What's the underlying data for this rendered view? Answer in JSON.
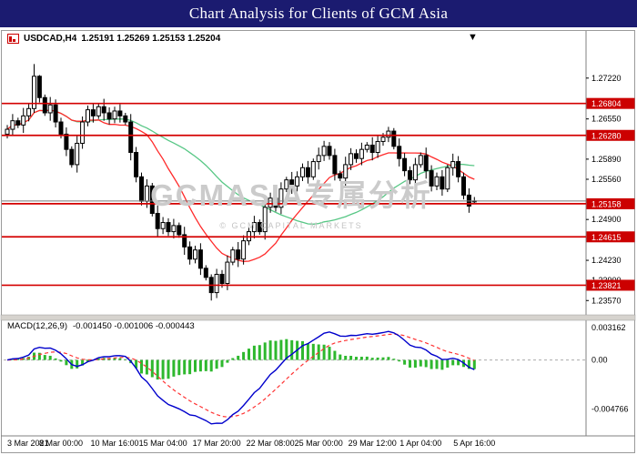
{
  "title_bar": {
    "title": "Chart Analysis for Clients of GCM Asia"
  },
  "chart_header": {
    "symbol": "USDCAD,H4",
    "ohlc": "1.25191 1.25269 1.25153 1.25204"
  },
  "icons": {
    "chevron_down": "▼"
  },
  "watermark": {
    "line1": "GCMASIA专属分析",
    "line2": "© GCM CAPITAL MARKETS"
  },
  "colors": {
    "titlebar_bg": "#1b1b70",
    "title_text": "#ffffff",
    "line_red": "#d40000",
    "badge_bg": "#cc0000",
    "badge_text": "#ffffff",
    "ma_fast": "#ff2a2a",
    "ma_slow": "#57c785",
    "macd_main": "#0000cc",
    "macd_signal": "#ff3333",
    "macd_hist": "#2eb82e",
    "bull": "#ffffff",
    "bear": "#000000",
    "axis_text": "#000000"
  },
  "chart_data": {
    "type": "candlestick",
    "symbol": "USDCAD",
    "timeframe": "H4",
    "ylim": [
      1.2335,
      1.2768
    ],
    "y_axis_ticks": [
      "1.27220",
      "1.26550",
      "1.25890",
      "1.25560",
      "1.24900",
      "1.24230",
      "1.23900",
      "1.23570"
    ],
    "price_lines": [
      "1.26804",
      "1.26280",
      "1.25158",
      "1.24615",
      "1.23821"
    ],
    "bid_price": 1.25204,
    "candles": [
      [
        1.263,
        1.2645,
        1.2623,
        1.2638
      ],
      [
        1.2638,
        1.2663,
        1.2627,
        1.2652
      ],
      [
        1.2652,
        1.2657,
        1.264,
        1.2645
      ],
      [
        1.2645,
        1.2673,
        1.2632,
        1.266
      ],
      [
        1.266,
        1.2681,
        1.2651,
        1.2672
      ],
      [
        1.2672,
        1.2745,
        1.2665,
        1.2725
      ],
      [
        1.2725,
        1.2727,
        1.2682,
        1.269
      ],
      [
        1.269,
        1.2695,
        1.266,
        1.2665
      ],
      [
        1.2665,
        1.2691,
        1.2652,
        1.2678
      ],
      [
        1.2678,
        1.2687,
        1.2641,
        1.265
      ],
      [
        1.265,
        1.2657,
        1.2623,
        1.263
      ],
      [
        1.263,
        1.2641,
        1.2594,
        1.2605
      ],
      [
        1.2605,
        1.261,
        1.2575,
        1.258
      ],
      [
        1.258,
        1.2628,
        1.2567,
        1.2615
      ],
      [
        1.2615,
        1.2659,
        1.2606,
        1.265
      ],
      [
        1.265,
        1.2677,
        1.2643,
        1.267
      ],
      [
        1.267,
        1.2681,
        1.2649,
        1.266
      ],
      [
        1.266,
        1.268,
        1.2655,
        1.2675
      ],
      [
        1.2675,
        1.2688,
        1.2652,
        1.2665
      ],
      [
        1.2665,
        1.2674,
        1.2646,
        1.2655
      ],
      [
        1.2655,
        1.2675,
        1.2648,
        1.2668
      ],
      [
        1.2668,
        1.2679,
        1.2649,
        1.266
      ],
      [
        1.266,
        1.2665,
        1.2645,
        1.265
      ],
      [
        1.265,
        1.2663,
        1.2587,
        1.26
      ],
      [
        1.26,
        1.2609,
        1.2551,
        1.256
      ],
      [
        1.256,
        1.2567,
        1.2513,
        1.252
      ],
      [
        1.252,
        1.2556,
        1.2509,
        1.2545
      ],
      [
        1.2545,
        1.255,
        1.2495,
        1.25
      ],
      [
        1.25,
        1.2513,
        1.2462,
        1.2475
      ],
      [
        1.2475,
        1.2494,
        1.2466,
        1.2485
      ],
      [
        1.2485,
        1.2492,
        1.2463,
        1.247
      ],
      [
        1.247,
        1.2491,
        1.2459,
        1.248
      ],
      [
        1.248,
        1.2485,
        1.246,
        1.2465
      ],
      [
        1.2465,
        1.2478,
        1.2432,
        1.2445
      ],
      [
        1.2445,
        1.2454,
        1.2416,
        1.2425
      ],
      [
        1.2425,
        1.2447,
        1.2418,
        1.244
      ],
      [
        1.244,
        1.2451,
        1.2399,
        1.241
      ],
      [
        1.241,
        1.2415,
        1.239,
        1.2395
      ],
      [
        1.2395,
        1.24,
        1.2357,
        1.237
      ],
      [
        1.237,
        1.2409,
        1.2361,
        1.24
      ],
      [
        1.24,
        1.2407,
        1.2378,
        1.2385
      ],
      [
        1.2385,
        1.2431,
        1.2374,
        1.242
      ],
      [
        1.242,
        1.2445,
        1.2415,
        1.244
      ],
      [
        1.244,
        1.2453,
        1.2412,
        1.2425
      ],
      [
        1.2425,
        1.2464,
        1.2416,
        1.2455
      ],
      [
        1.2455,
        1.2477,
        1.2448,
        1.247
      ],
      [
        1.247,
        1.2496,
        1.2459,
        1.2485
      ],
      [
        1.2485,
        1.249,
        1.2465,
        1.247
      ],
      [
        1.247,
        1.2523,
        1.2457,
        1.251
      ],
      [
        1.251,
        1.2534,
        1.2501,
        1.2525
      ],
      [
        1.2525,
        1.2532,
        1.2503,
        1.251
      ],
      [
        1.251,
        1.2551,
        1.2499,
        1.254
      ],
      [
        1.254,
        1.256,
        1.2535,
        1.2555
      ],
      [
        1.2555,
        1.2568,
        1.2532,
        1.2545
      ],
      [
        1.2545,
        1.2569,
        1.2536,
        1.256
      ],
      [
        1.256,
        1.2582,
        1.2553,
        1.2575
      ],
      [
        1.2575,
        1.2586,
        1.2549,
        1.256
      ],
      [
        1.256,
        1.259,
        1.2555,
        1.2585
      ],
      [
        1.2585,
        1.2608,
        1.2572,
        1.2595
      ],
      [
        1.2595,
        1.2619,
        1.2586,
        1.261
      ],
      [
        1.261,
        1.2617,
        1.2588,
        1.2595
      ],
      [
        1.2595,
        1.2606,
        1.2554,
        1.2565
      ],
      [
        1.2565,
        1.257,
        1.2553,
        1.2558
      ],
      [
        1.2558,
        1.2593,
        1.2545,
        1.258
      ],
      [
        1.258,
        1.2607,
        1.2571,
        1.2598
      ],
      [
        1.2598,
        1.2605,
        1.2583,
        1.259
      ],
      [
        1.259,
        1.2616,
        1.2579,
        1.2605
      ],
      [
        1.2605,
        1.2617,
        1.26,
        1.2612
      ],
      [
        1.2612,
        1.2625,
        1.2587,
        1.26
      ],
      [
        1.26,
        1.2627,
        1.2591,
        1.2618
      ],
      [
        1.2618,
        1.2632,
        1.2611,
        1.2625
      ],
      [
        1.2625,
        1.2642,
        1.2617,
        1.2635
      ],
      [
        1.2635,
        1.264,
        1.2605,
        1.261
      ],
      [
        1.261,
        1.2623,
        1.2577,
        1.259
      ],
      [
        1.259,
        1.2599,
        1.2561,
        1.257
      ],
      [
        1.257,
        1.2577,
        1.2548,
        1.2555
      ],
      [
        1.2555,
        1.2591,
        1.2544,
        1.258
      ],
      [
        1.258,
        1.26,
        1.2575,
        1.2595
      ],
      [
        1.2595,
        1.2608,
        1.2557,
        1.257
      ],
      [
        1.257,
        1.2579,
        1.2536,
        1.2545
      ],
      [
        1.2545,
        1.2567,
        1.2538,
        1.256
      ],
      [
        1.256,
        1.2571,
        1.2529,
        1.254
      ],
      [
        1.254,
        1.258,
        1.2535,
        1.2575
      ],
      [
        1.2575,
        1.2598,
        1.2562,
        1.2585
      ],
      [
        1.2585,
        1.2594,
        1.2551,
        1.256
      ],
      [
        1.256,
        1.2567,
        1.2523,
        1.253
      ],
      [
        1.253,
        1.2541,
        1.2501,
        1.2512
      ],
      [
        1.25191,
        1.25269,
        1.25153,
        1.25204
      ]
    ],
    "time_labels": [
      {
        "index": 0,
        "label": "3 Mar 2021"
      },
      {
        "index": 10,
        "label": "8 Mar 00:00"
      },
      {
        "index": 20,
        "label": "10 Mar 16:00"
      },
      {
        "index": 29,
        "label": "15 Mar 04:00"
      },
      {
        "index": 39,
        "label": "17 Mar 20:00"
      },
      {
        "index": 49,
        "label": "22 Mar 08:00"
      },
      {
        "index": 58,
        "label": "25 Mar 00:00"
      },
      {
        "index": 68,
        "label": "29 Mar 12:00"
      },
      {
        "index": 77,
        "label": "1 Apr 04:00"
      },
      {
        "index": 87,
        "label": "5 Apr 16:00"
      }
    ],
    "moving_averages": [
      {
        "period": 13
      },
      {
        "period": 34
      }
    ],
    "macd": {
      "label": "MACD(12,26,9)",
      "values_text": "-0.001450 -0.001006 -0.000443",
      "params": [
        12,
        26,
        9
      ],
      "y_ticks": [
        "0.003162",
        "0.00",
        "-0.004766"
      ]
    }
  }
}
